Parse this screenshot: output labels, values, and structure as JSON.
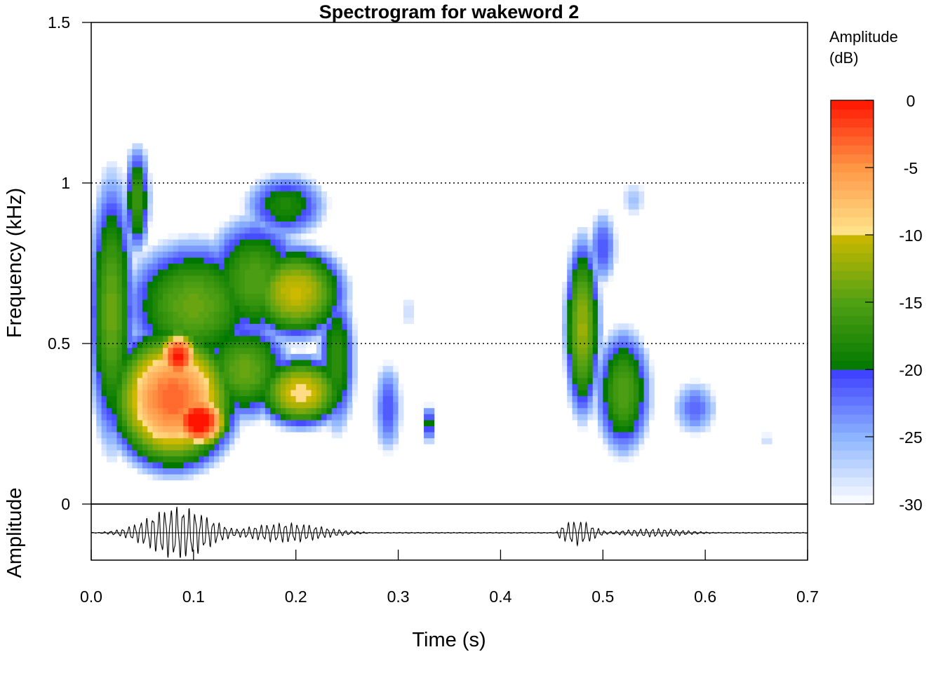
{
  "chart_data": {
    "type": "heatmap",
    "title": "Spectrogram for wakeword 2",
    "xlabel": "Time (s)",
    "ylabel": "Frequency (kHz)",
    "osc_ylabel": "Amplitude",
    "xlim": [
      0.0,
      0.7
    ],
    "ylim": [
      0,
      1.5
    ],
    "x_ticks": [
      "0.0",
      "0.1",
      "0.2",
      "0.3",
      "0.4",
      "0.5",
      "0.6",
      "0.7"
    ],
    "x_tick_values": [
      0.0,
      0.1,
      0.2,
      0.3,
      0.4,
      0.5,
      0.6,
      0.7
    ],
    "y_ticks": [
      "0",
      "0.5",
      "1",
      "1.5"
    ],
    "y_tick_values": [
      0,
      0.5,
      1,
      1.5
    ],
    "grid_lines_y": [
      0.5,
      1.0
    ],
    "colorbar": {
      "label_line1": "Amplitude",
      "label_line2": "(dB)",
      "range": [
        -30,
        0
      ],
      "ticks": [
        "0",
        "-5",
        "-10",
        "-15",
        "-20",
        "-25",
        "-30"
      ],
      "tick_values": [
        0,
        -5,
        -10,
        -15,
        -20,
        -25,
        -30
      ]
    },
    "blobs": [
      {
        "t": 0.045,
        "f": 0.95,
        "st": 0.012,
        "sf": 0.16,
        "a": -16
      },
      {
        "t": 0.02,
        "f": 0.6,
        "st": 0.02,
        "sf": 0.38,
        "a": -14
      },
      {
        "t": 0.08,
        "f": 0.33,
        "st": 0.045,
        "sf": 0.16,
        "a": -3
      },
      {
        "t": 0.105,
        "f": 0.26,
        "st": 0.02,
        "sf": 0.06,
        "a": 2
      },
      {
        "t": 0.085,
        "f": 0.46,
        "st": 0.015,
        "sf": 0.06,
        "a": 0
      },
      {
        "t": 0.1,
        "f": 0.62,
        "st": 0.06,
        "sf": 0.18,
        "a": -14
      },
      {
        "t": 0.16,
        "f": 0.7,
        "st": 0.045,
        "sf": 0.18,
        "a": -15
      },
      {
        "t": 0.2,
        "f": 0.66,
        "st": 0.04,
        "sf": 0.12,
        "a": -10
      },
      {
        "t": 0.205,
        "f": 0.35,
        "st": 0.035,
        "sf": 0.09,
        "a": -9
      },
      {
        "t": 0.19,
        "f": 0.93,
        "st": 0.04,
        "sf": 0.1,
        "a": -18
      },
      {
        "t": 0.24,
        "f": 0.45,
        "st": 0.018,
        "sf": 0.22,
        "a": -17
      },
      {
        "t": 0.15,
        "f": 0.42,
        "st": 0.04,
        "sf": 0.14,
        "a": -14
      },
      {
        "t": 0.29,
        "f": 0.3,
        "st": 0.015,
        "sf": 0.16,
        "a": -21
      },
      {
        "t": 0.33,
        "f": 0.25,
        "st": 0.006,
        "sf": 0.06,
        "a": -18
      },
      {
        "t": 0.31,
        "f": 0.6,
        "st": 0.01,
        "sf": 0.1,
        "a": -27
      },
      {
        "t": 0.48,
        "f": 0.55,
        "st": 0.015,
        "sf": 0.24,
        "a": -12
      },
      {
        "t": 0.52,
        "f": 0.35,
        "st": 0.025,
        "sf": 0.18,
        "a": -15
      },
      {
        "t": 0.5,
        "f": 0.8,
        "st": 0.015,
        "sf": 0.13,
        "a": -21
      },
      {
        "t": 0.53,
        "f": 0.95,
        "st": 0.018,
        "sf": 0.08,
        "a": -26
      },
      {
        "t": 0.59,
        "f": 0.3,
        "st": 0.025,
        "sf": 0.1,
        "a": -22
      },
      {
        "t": 0.66,
        "f": 0.2,
        "st": 0.006,
        "sf": 0.04,
        "a": -26
      }
    ]
  }
}
